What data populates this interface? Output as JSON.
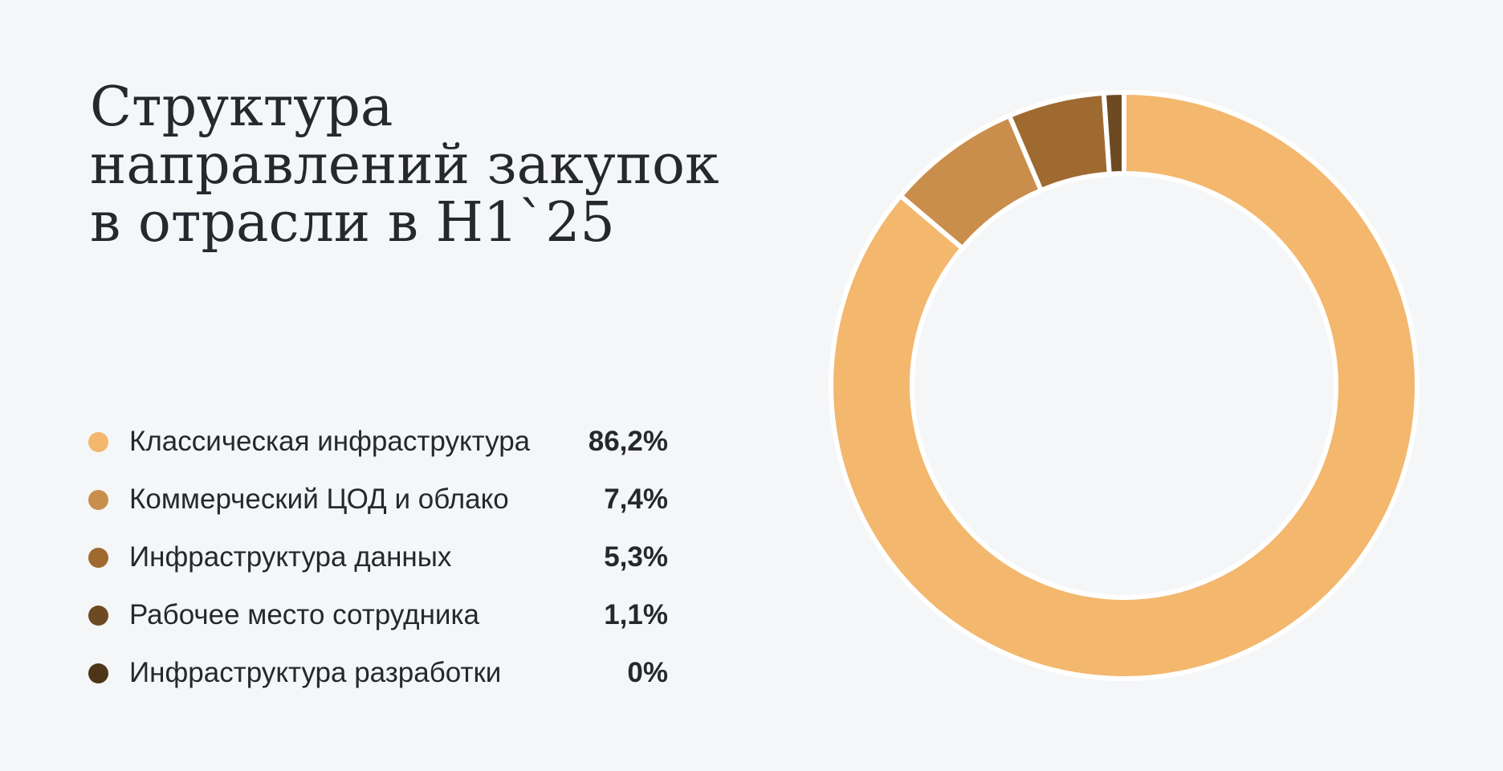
{
  "title_lines": [
    "Структура",
    "направлений закупок",
    "в отрасли в H1`25"
  ],
  "chart_data": {
    "type": "donut",
    "title": "Структура направлений закупок в отрасли в H1`25",
    "slices": [
      {
        "label": "Классическая инфраструктура",
        "value": 86.2,
        "value_label": "86,2%",
        "color": "#f3b76e"
      },
      {
        "label": "Коммерческий ЦОД и облако",
        "value": 7.4,
        "value_label": "7,4%",
        "color": "#c98e4b"
      },
      {
        "label": "Инфраструктура данных",
        "value": 5.3,
        "value_label": "5,3%",
        "color": "#9f6a30"
      },
      {
        "label": "Рабочее место сотрудника",
        "value": 1.1,
        "value_label": "1,1%",
        "color": "#6e4a22"
      },
      {
        "label": "Инфраструктура разработки",
        "value": 0,
        "value_label": "0%",
        "color": "#4f3518"
      }
    ],
    "start_angle_deg": 0,
    "direction": "clockwise",
    "legend_position": "left",
    "slice_separator_color": "#ffffff"
  }
}
